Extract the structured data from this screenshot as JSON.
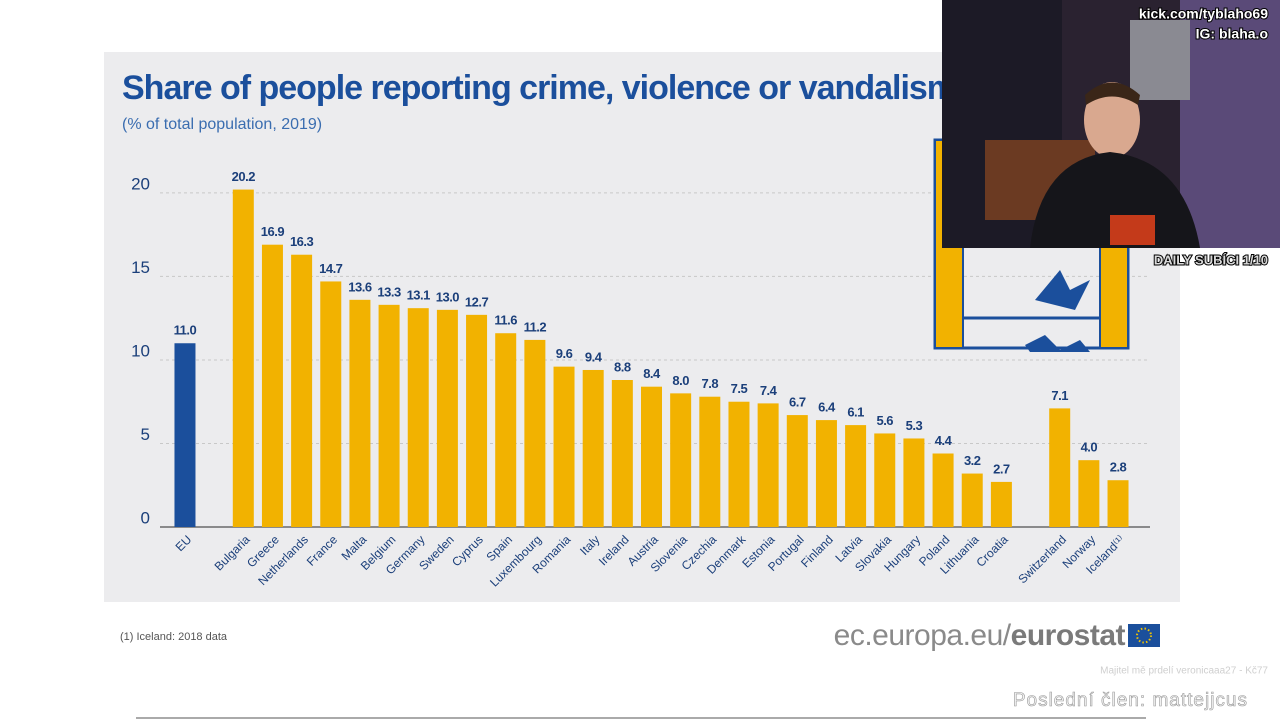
{
  "chart_data": {
    "type": "bar",
    "title": "Share of people reporting crime, violence or vandalism in",
    "subtitle": "(% of total population, 2019)",
    "categories": [
      "EU",
      null,
      "Bulgaria",
      "Greece",
      "Netherlands",
      "France",
      "Malta",
      "Belgium",
      "Germany",
      "Sweden",
      "Cyprus",
      "Spain",
      "Luxembourg",
      "Romania",
      "Italy",
      "Ireland",
      "Austria",
      "Slovenia",
      "Czechia",
      "Denmark",
      "Estonia",
      "Portugal",
      "Finland",
      "Latvia",
      "Slovakia",
      "Hungary",
      "Poland",
      "Lithuania",
      "Croatia",
      null,
      "Switzerland",
      "Norway",
      "Iceland⁽¹⁾"
    ],
    "values": [
      11.0,
      null,
      20.2,
      16.9,
      16.3,
      14.7,
      13.6,
      13.3,
      13.1,
      13.0,
      12.7,
      11.6,
      11.2,
      9.6,
      9.4,
      8.8,
      8.4,
      8.0,
      7.8,
      7.5,
      7.4,
      6.7,
      6.4,
      6.1,
      5.6,
      5.3,
      4.4,
      3.2,
      2.7,
      null,
      7.1,
      4.0,
      2.8
    ],
    "value_labels": [
      "11.0",
      null,
      "20.2",
      "16.9",
      "16.3",
      "14.7",
      "13.6",
      "13.3",
      "13.1",
      "13.0",
      "12.7",
      "11.6",
      "11.2",
      "9.6",
      "9.4",
      "8.8",
      "8.4",
      "8.0",
      "7.8",
      "7.5",
      "7.4",
      "6.7",
      "6.4",
      "6.1",
      "5.6",
      "5.3",
      "4.4",
      "3.2",
      "2.7",
      null,
      "7.1",
      "4.0",
      "2.8"
    ],
    "colors": [
      "#1b4f9c",
      null,
      "#f2b200",
      "#f2b200",
      "#f2b200",
      "#f2b200",
      "#f2b200",
      "#f2b200",
      "#f2b200",
      "#f2b200",
      "#f2b200",
      "#f2b200",
      "#f2b200",
      "#f2b200",
      "#f2b200",
      "#f2b200",
      "#f2b200",
      "#f2b200",
      "#f2b200",
      "#f2b200",
      "#f2b200",
      "#f2b200",
      "#f2b200",
      "#f2b200",
      "#f2b200",
      "#f2b200",
      "#f2b200",
      "#f2b200",
      "#f2b200",
      null,
      "#f2b200",
      "#f2b200",
      "#f2b200"
    ],
    "ylim": [
      0,
      22
    ],
    "yticks": [
      0,
      5,
      10,
      15,
      20
    ],
    "grid": true,
    "footnote": "(1)  Iceland: 2018 data",
    "source_domain": "ec.europa.eu/",
    "source_brand": "eurostat"
  },
  "overlay": {
    "channel": "kick.com/tyblaho69",
    "instagram": "IG: blaha.o",
    "goal": "DAILY SUBÍCI 1/10",
    "top_donor": "Majitel mě prdelí veronicaaa27 - Kč77",
    "last_member": "Poslední člen: mattejjcus"
  }
}
